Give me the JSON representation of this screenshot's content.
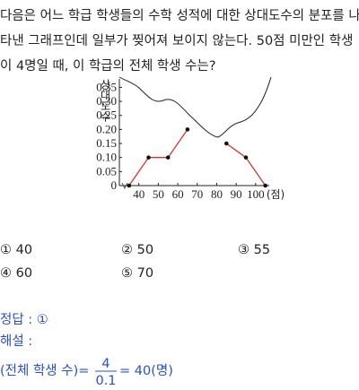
{
  "problem": {
    "lines": [
      "다음은 어느 학급 학생들의 수학 성적에 대한 상대도수의 분포를 나",
      "타낸 그래프인데 일부가 찢어져 보이지 않는다. 50점 미만인 학생",
      "이 4명일 때, 이 학급의 전체 학생 수는?"
    ]
  },
  "chart_data": {
    "type": "line",
    "y_label": "상대도수",
    "x_unit": "(점)",
    "x": [
      35,
      45,
      55,
      65,
      75,
      85,
      95,
      105
    ],
    "series": [
      {
        "color": "#d9342b",
        "values": [
          0,
          0.1,
          0.1,
          0.2,
          null,
          0.15,
          0.1,
          0
        ]
      }
    ],
    "xlim": [
      30,
      107
    ],
    "ylim": [
      0,
      0.38
    ],
    "xticks": [
      40,
      50,
      60,
      70,
      80,
      90,
      100
    ],
    "yticks": [
      0,
      0.05,
      {
        "value": 0.1,
        "label": "0.10"
      },
      0.15,
      {
        "value": 0.2,
        "label": "0.20"
      },
      0.25,
      {
        "value": 0.3,
        "label": "0.30"
      },
      0.35
    ]
  },
  "choices": [
    "① 40",
    "② 50",
    "③ 55",
    "④ 60",
    "⑤ 70"
  ],
  "answer": "정답 : ①",
  "solution": {
    "label": "해설 :",
    "lhs": "(전체 학생 수)=",
    "numerator": "4",
    "denominator": "0.1",
    "rhs": "= 40(명)"
  }
}
